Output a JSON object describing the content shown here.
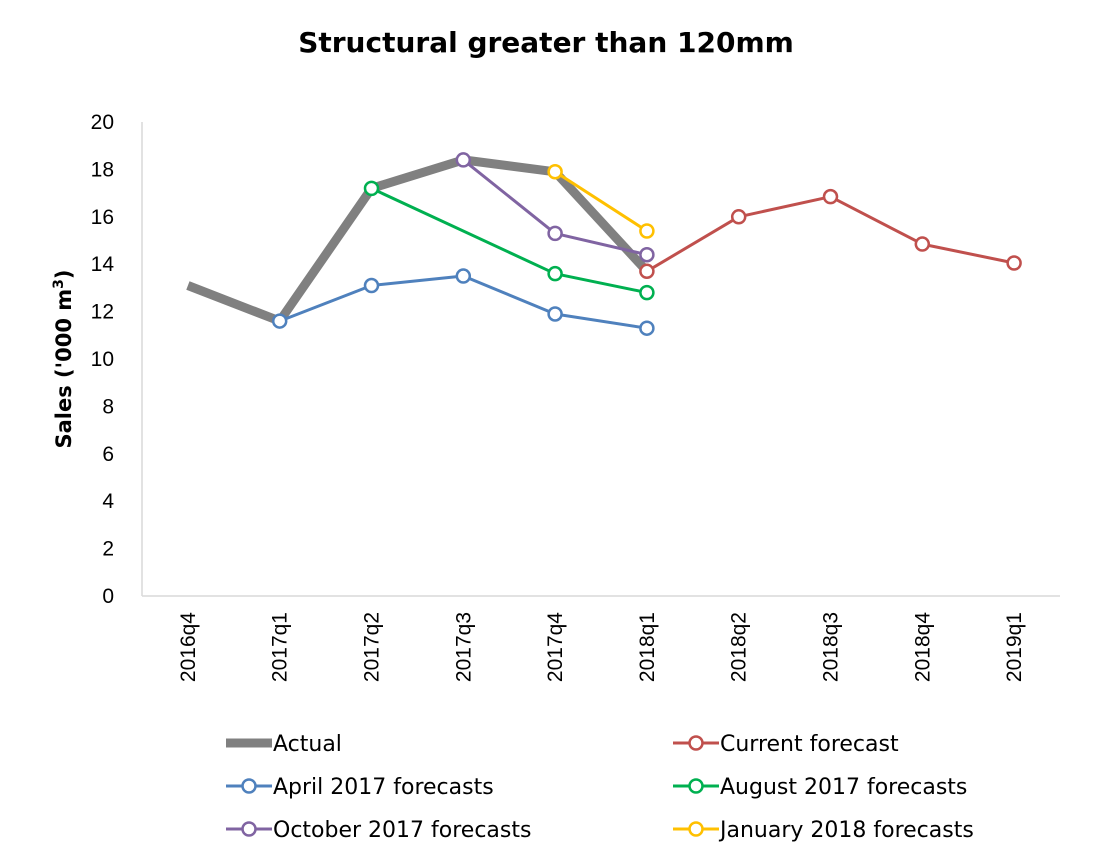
{
  "chart_data": {
    "type": "line",
    "title": "Structural greater than 120mm",
    "ylabel": "Sales ('000 m",
    "ylabel_sup": "3",
    "ylabel_close": ")",
    "xlabel": "",
    "categories": [
      "2016q4",
      "2017q1",
      "2017q2",
      "2017q3",
      "2017q4",
      "2018q1",
      "2018q2",
      "2018q3",
      "2018q4",
      "2019q1"
    ],
    "yticks": [
      "0",
      "2",
      "4",
      "6",
      "8",
      "10",
      "12",
      "14",
      "16",
      "18",
      "20"
    ],
    "ylim": [
      0,
      20
    ],
    "grid": false,
    "legend_position": "bottom",
    "series": [
      {
        "name": "Actual",
        "color": "#808080",
        "markers": false,
        "values": [
          13.1,
          11.6,
          17.2,
          18.4,
          17.9,
          13.7,
          null,
          null,
          null,
          null
        ]
      },
      {
        "name": "Current forecast",
        "color": "#C0504D",
        "markers": true,
        "values": [
          null,
          null,
          null,
          null,
          null,
          13.7,
          16.0,
          16.85,
          14.85,
          14.05
        ]
      },
      {
        "name": "April 2017 forecasts",
        "color": "#4F81BD",
        "markers": true,
        "values": [
          null,
          11.6,
          13.1,
          13.5,
          11.9,
          11.3,
          null,
          null,
          null,
          null
        ]
      },
      {
        "name": "August 2017 forecasts",
        "color": "#00B050",
        "markers": true,
        "values": [
          null,
          null,
          17.2,
          null,
          13.6,
          12.8,
          null,
          null,
          null,
          null
        ]
      },
      {
        "name": "October 2017 forecasts",
        "color": "#8064A2",
        "markers": true,
        "values": [
          null,
          null,
          null,
          18.4,
          15.3,
          14.4,
          null,
          null,
          null,
          null
        ]
      },
      {
        "name": "January 2018 forecasts",
        "color": "#FFC000",
        "markers": true,
        "values": [
          null,
          null,
          null,
          null,
          17.9,
          15.4,
          null,
          null,
          null,
          null
        ]
      }
    ]
  }
}
